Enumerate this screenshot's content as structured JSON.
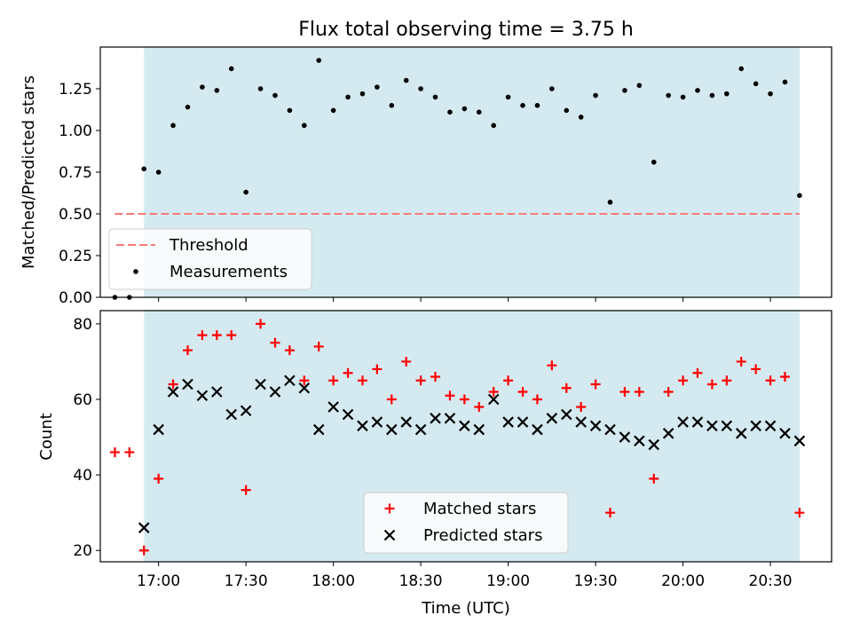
{
  "figure": {
    "title": "Flux total observing time = 3.75 h"
  },
  "chart_data": [
    {
      "type": "scatter",
      "panel": "top",
      "title": "Flux total observing time = 3.75 h",
      "xlabel": "",
      "ylabel": "Matched/Predicted stars",
      "ylim": [
        0,
        1.5
      ],
      "yticks": [
        "0.00",
        "0.25",
        "0.50",
        "0.75",
        "1.00",
        "1.25"
      ],
      "xticks": [
        "17:00",
        "17:30",
        "18:00",
        "18:30",
        "19:00",
        "19:30",
        "20:00",
        "20:30"
      ],
      "x_range": [
        "16:40",
        "20:51"
      ],
      "observing_window": [
        "16:55",
        "20:40"
      ],
      "shade_color": "#d4eaf0",
      "legend_position": "lower left",
      "threshold": {
        "name": "Threshold",
        "value": 0.5,
        "x_range": [
          "16:45",
          "20:40"
        ],
        "color": "#f77a7a"
      },
      "series": [
        {
          "name": "Measurements",
          "marker": "dot",
          "color": "#000000",
          "points": [
            [
              "16:45",
              0.0
            ],
            [
              "16:50",
              0.0
            ],
            [
              "16:55",
              0.77
            ],
            [
              "17:00",
              0.75
            ],
            [
              "17:05",
              1.03
            ],
            [
              "17:10",
              1.14
            ],
            [
              "17:15",
              1.26
            ],
            [
              "17:20",
              1.24
            ],
            [
              "17:25",
              1.37
            ],
            [
              "17:30",
              0.63
            ],
            [
              "17:35",
              1.25
            ],
            [
              "17:40",
              1.21
            ],
            [
              "17:45",
              1.12
            ],
            [
              "17:50",
              1.03
            ],
            [
              "17:55",
              1.42
            ],
            [
              "18:00",
              1.12
            ],
            [
              "18:05",
              1.2
            ],
            [
              "18:10",
              1.22
            ],
            [
              "18:15",
              1.26
            ],
            [
              "18:20",
              1.15
            ],
            [
              "18:25",
              1.3
            ],
            [
              "18:30",
              1.25
            ],
            [
              "18:35",
              1.2
            ],
            [
              "18:40",
              1.11
            ],
            [
              "18:45",
              1.13
            ],
            [
              "18:50",
              1.11
            ],
            [
              "18:55",
              1.03
            ],
            [
              "19:00",
              1.2
            ],
            [
              "19:05",
              1.15
            ],
            [
              "19:10",
              1.15
            ],
            [
              "19:15",
              1.25
            ],
            [
              "19:20",
              1.12
            ],
            [
              "19:25",
              1.08
            ],
            [
              "19:30",
              1.21
            ],
            [
              "19:35",
              0.57
            ],
            [
              "19:40",
              1.24
            ],
            [
              "19:45",
              1.27
            ],
            [
              "19:50",
              0.81
            ],
            [
              "19:55",
              1.21
            ],
            [
              "20:00",
              1.2
            ],
            [
              "20:05",
              1.24
            ],
            [
              "20:10",
              1.21
            ],
            [
              "20:15",
              1.22
            ],
            [
              "20:20",
              1.37
            ],
            [
              "20:25",
              1.28
            ],
            [
              "20:30",
              1.22
            ],
            [
              "20:35",
              1.29
            ],
            [
              "20:40",
              0.61
            ]
          ]
        }
      ]
    },
    {
      "type": "scatter",
      "panel": "bottom",
      "xlabel": "Time (UTC)",
      "ylabel": "Count",
      "ylim": [
        17,
        83.5
      ],
      "yticks": [
        "20",
        "40",
        "60",
        "80"
      ],
      "xticks": [
        "17:00",
        "17:30",
        "18:00",
        "18:30",
        "19:00",
        "19:30",
        "20:00",
        "20:30"
      ],
      "x_range": [
        "16:40",
        "20:51"
      ],
      "observing_window": [
        "16:55",
        "20:40"
      ],
      "shade_color": "#d4eaf0",
      "legend_position": "lower center",
      "series": [
        {
          "name": "Matched stars",
          "marker": "plus",
          "color": "#ff0000",
          "points": [
            [
              "16:45",
              46
            ],
            [
              "16:50",
              46
            ],
            [
              "16:55",
              20
            ],
            [
              "17:00",
              39
            ],
            [
              "17:05",
              64
            ],
            [
              "17:10",
              73
            ],
            [
              "17:15",
              77
            ],
            [
              "17:20",
              77
            ],
            [
              "17:25",
              77
            ],
            [
              "17:30",
              36
            ],
            [
              "17:35",
              80
            ],
            [
              "17:40",
              75
            ],
            [
              "17:45",
              73
            ],
            [
              "17:50",
              65
            ],
            [
              "17:55",
              74
            ],
            [
              "18:00",
              65
            ],
            [
              "18:05",
              67
            ],
            [
              "18:10",
              65
            ],
            [
              "18:15",
              68
            ],
            [
              "18:20",
              60
            ],
            [
              "18:25",
              70
            ],
            [
              "18:30",
              65
            ],
            [
              "18:35",
              66
            ],
            [
              "18:40",
              61
            ],
            [
              "18:45",
              60
            ],
            [
              "18:50",
              58
            ],
            [
              "18:55",
              62
            ],
            [
              "19:00",
              65
            ],
            [
              "19:05",
              62
            ],
            [
              "19:10",
              60
            ],
            [
              "19:15",
              69
            ],
            [
              "19:20",
              63
            ],
            [
              "19:25",
              58
            ],
            [
              "19:30",
              64
            ],
            [
              "19:35",
              30
            ],
            [
              "19:40",
              62
            ],
            [
              "19:45",
              62
            ],
            [
              "19:50",
              39
            ],
            [
              "19:55",
              62
            ],
            [
              "20:00",
              65
            ],
            [
              "20:05",
              67
            ],
            [
              "20:10",
              64
            ],
            [
              "20:15",
              65
            ],
            [
              "20:20",
              70
            ],
            [
              "20:25",
              68
            ],
            [
              "20:30",
              65
            ],
            [
              "20:35",
              66
            ],
            [
              "20:40",
              30
            ]
          ]
        },
        {
          "name": "Predicted stars",
          "marker": "x",
          "color": "#000000",
          "points": [
            [
              "16:55",
              26
            ],
            [
              "17:00",
              52
            ],
            [
              "17:05",
              62
            ],
            [
              "17:10",
              64
            ],
            [
              "17:15",
              61
            ],
            [
              "17:20",
              62
            ],
            [
              "17:25",
              56
            ],
            [
              "17:30",
              57
            ],
            [
              "17:35",
              64
            ],
            [
              "17:40",
              62
            ],
            [
              "17:45",
              65
            ],
            [
              "17:50",
              63
            ],
            [
              "17:55",
              52
            ],
            [
              "18:00",
              58
            ],
            [
              "18:05",
              56
            ],
            [
              "18:10",
              53
            ],
            [
              "18:15",
              54
            ],
            [
              "18:20",
              52
            ],
            [
              "18:25",
              54
            ],
            [
              "18:30",
              52
            ],
            [
              "18:35",
              55
            ],
            [
              "18:40",
              55
            ],
            [
              "18:45",
              53
            ],
            [
              "18:50",
              52
            ],
            [
              "18:55",
              60
            ],
            [
              "19:00",
              54
            ],
            [
              "19:05",
              54
            ],
            [
              "19:10",
              52
            ],
            [
              "19:15",
              55
            ],
            [
              "19:20",
              56
            ],
            [
              "19:25",
              54
            ],
            [
              "19:30",
              53
            ],
            [
              "19:35",
              52
            ],
            [
              "19:40",
              50
            ],
            [
              "19:45",
              49
            ],
            [
              "19:50",
              48
            ],
            [
              "19:55",
              51
            ],
            [
              "20:00",
              54
            ],
            [
              "20:05",
              54
            ],
            [
              "20:10",
              53
            ],
            [
              "20:15",
              53
            ],
            [
              "20:20",
              51
            ],
            [
              "20:25",
              53
            ],
            [
              "20:30",
              53
            ],
            [
              "20:35",
              51
            ],
            [
              "20:40",
              49
            ]
          ]
        }
      ]
    }
  ]
}
